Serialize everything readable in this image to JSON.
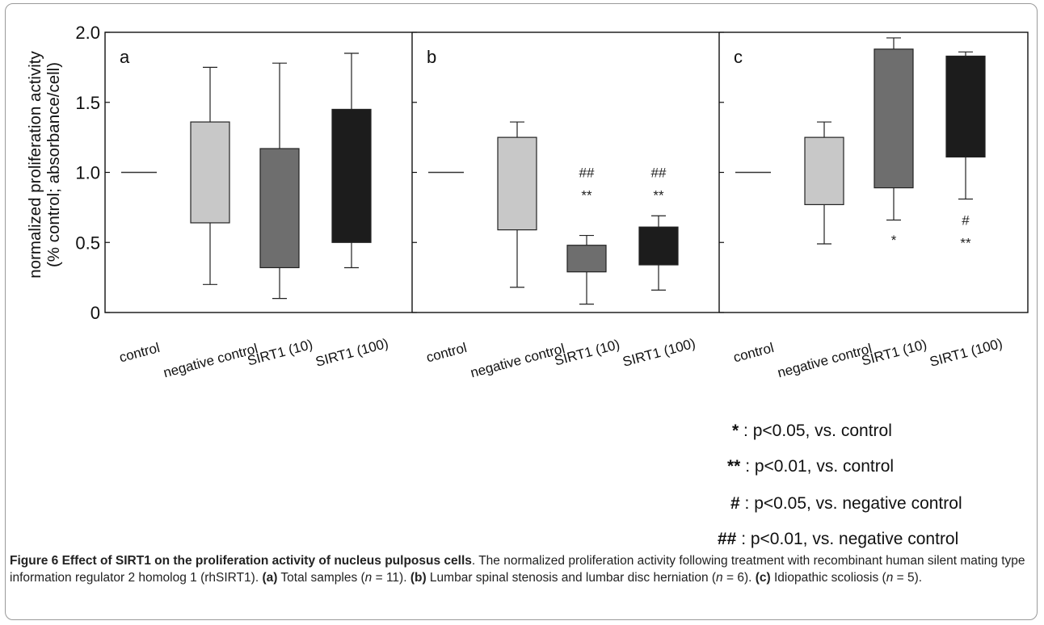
{
  "chart_data": {
    "type": "box",
    "ylabel_line1": "normalized proliferation activity",
    "ylabel_line2": "(% control; absorbance/cell)",
    "ylim": [
      0,
      2.0
    ],
    "yticks": [
      "0",
      "0.5",
      "1.0",
      "1.5",
      "2.0"
    ],
    "categories": [
      "control",
      "negative control",
      "SIRT1 (10)",
      "SIRT1 (100)"
    ],
    "colors": {
      "control": "#444444",
      "negative control": "#c8c8c8",
      "SIRT1 (10)": "#6e6e6e",
      "SIRT1 (100)": "#1c1c1c"
    },
    "panels": [
      {
        "label": "a",
        "boxes": [
          {
            "category": "control",
            "line": 1.0
          },
          {
            "category": "negative control",
            "min": 0.2,
            "q1": 0.64,
            "q3": 1.36,
            "max": 1.75
          },
          {
            "category": "SIRT1 (10)",
            "min": 0.1,
            "q1": 0.32,
            "q3": 1.17,
            "max": 1.78
          },
          {
            "category": "SIRT1 (100)",
            "min": 0.32,
            "q1": 0.5,
            "q3": 1.45,
            "max": 1.85
          }
        ],
        "annotations": []
      },
      {
        "label": "b",
        "boxes": [
          {
            "category": "control",
            "line": 1.0
          },
          {
            "category": "negative control",
            "min": 0.18,
            "q1": 0.59,
            "q3": 1.25,
            "max": 1.36
          },
          {
            "category": "SIRT1 (10)",
            "min": 0.06,
            "q1": 0.29,
            "q3": 0.48,
            "max": 0.55
          },
          {
            "category": "SIRT1 (100)",
            "min": 0.16,
            "q1": 0.34,
            "q3": 0.61,
            "max": 0.69
          }
        ],
        "annotations": [
          {
            "category": "SIRT1 (10)",
            "lines": [
              "##",
              "**"
            ],
            "y": [
              1.0,
              0.84
            ]
          },
          {
            "category": "SIRT1 (100)",
            "lines": [
              "##",
              "**"
            ],
            "y": [
              1.0,
              0.84
            ]
          }
        ]
      },
      {
        "label": "c",
        "boxes": [
          {
            "category": "control",
            "line": 1.0
          },
          {
            "category": "negative control",
            "min": 0.49,
            "q1": 0.77,
            "q3": 1.25,
            "max": 1.36
          },
          {
            "category": "SIRT1 (10)",
            "min": 0.66,
            "q1": 0.89,
            "q3": 1.88,
            "max": 1.96
          },
          {
            "category": "SIRT1 (100)",
            "min": 0.81,
            "q1": 1.11,
            "q3": 1.83,
            "max": 1.86
          }
        ],
        "annotations": [
          {
            "category": "SIRT1 (10)",
            "lines": [
              "*"
            ],
            "y": [
              0.52
            ]
          },
          {
            "category": "SIRT1 (100)",
            "lines": [
              "#",
              "**"
            ],
            "y": [
              0.66,
              0.5
            ]
          }
        ]
      }
    ]
  },
  "legend": [
    {
      "symbol": "*",
      "text": " : p<0.05, vs. control"
    },
    {
      "symbol": "**",
      "text": " : p<0.01, vs. control"
    },
    {
      "symbol": "#",
      "text": " : p<0.05, vs. negative control"
    },
    {
      "symbol": "##",
      "text": " : p<0.01, vs. negative control"
    }
  ],
  "caption": {
    "title": "Figure 6 Effect of SIRT1 on the proliferation activity of nucleus pulposus cells",
    "body1": ". The normalized proliferation activity following treatment with recombinant human silent mating type information regulator 2 homolog 1 (rhSIRT1). ",
    "a_label": "(a)",
    "a_text_1": " Total samples (",
    "a_n": "n",
    "a_text_2": " = 11). ",
    "b_label": "(b)",
    "b_text_1": " Lumbar spinal stenosis and lumbar disc herniation (",
    "b_n": "n",
    "b_text_2": " = 6). ",
    "c_label": "(c)",
    "c_text_1": " Idiopathic scoliosis (",
    "c_n": "n",
    "c_text_2": " = 5)."
  }
}
